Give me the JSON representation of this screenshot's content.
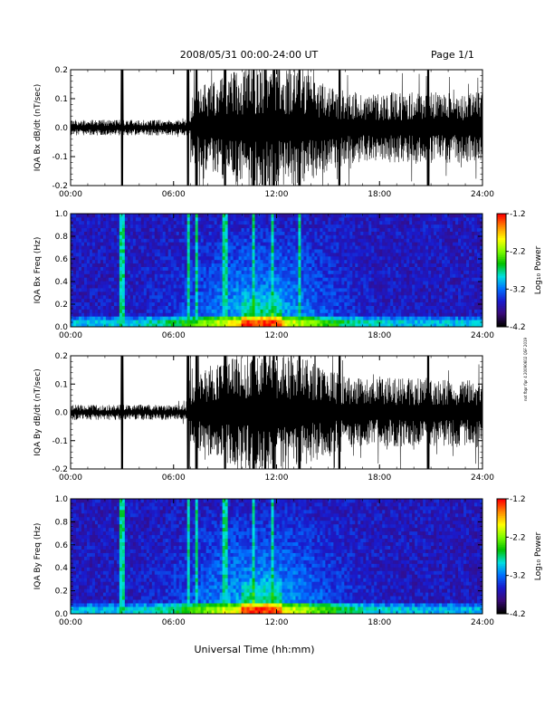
{
  "header": {
    "title": "2008/05/31  00:00-24:00 UT",
    "page": "Page 1/1"
  },
  "side_text": "not fbpr fipr 4 20090602 QSF 2019",
  "xlabel": "Universal Time (hh:mm)",
  "time_ticks": [
    "00:00",
    "06:00",
    "12:00",
    "18:00",
    "24:00"
  ],
  "colors": {
    "wave": "#000000",
    "background": "#ffffff"
  },
  "colorbar": {
    "label": "Log₁₀ Power",
    "ticks": [
      "-1.2",
      "-2.2",
      "-3.2",
      "-4.2"
    ],
    "stops": [
      "#ff0000",
      "#ff8c00",
      "#ffff00",
      "#7cfc00",
      "#00c000",
      "#00e0e0",
      "#0070ff",
      "#1a1acc",
      "#3a0a7a",
      "#000000"
    ]
  },
  "chart_data": [
    {
      "type": "line",
      "ylabel": "IQA Bx dB/dt (nT/sec)",
      "x": [
        "00:00",
        "24:00"
      ],
      "ylim": [
        -0.2,
        0.2
      ],
      "yticks": [
        "0.2",
        "0.1",
        "0.0",
        "-0.1",
        "-0.2"
      ],
      "grid": false,
      "spikes": [
        "03:00",
        "06:50",
        "07:20",
        "09:00",
        "10:40",
        "11:20",
        "11:50",
        "13:20",
        "15:40",
        "20:50"
      ],
      "activity_start": "07:00",
      "activity_peak": "11:30"
    },
    {
      "type": "heatmap",
      "ylabel": "IQA Bx Freq (Hz)",
      "x": [
        "00:00",
        "24:00"
      ],
      "ylim": [
        0.0,
        1.0
      ],
      "yticks": [
        "1.0",
        "0.8",
        "0.6",
        "0.4",
        "0.2",
        "0.0"
      ],
      "zlim": [
        -4.2,
        -1.2
      ],
      "vertical_lines": [
        "03:00",
        "06:50",
        "07:20",
        "09:00",
        "10:40",
        "11:50",
        "13:20"
      ]
    },
    {
      "type": "line",
      "ylabel": "IQA By dB/dt (nT/sec)",
      "x": [
        "00:00",
        "24:00"
      ],
      "ylim": [
        -0.2,
        0.2
      ],
      "yticks": [
        "0.2",
        "0.1",
        "0.0",
        "-0.1",
        "-0.2"
      ],
      "grid": false,
      "spikes": [
        "03:00",
        "06:50",
        "07:20",
        "09:00",
        "10:40",
        "11:20",
        "11:50",
        "13:20",
        "15:40",
        "20:50"
      ],
      "activity_start": "06:50",
      "activity_peak": "11:30"
    },
    {
      "type": "heatmap",
      "ylabel": "IQA By Freq (Hz)",
      "x": [
        "00:00",
        "24:00"
      ],
      "ylim": [
        0.0,
        1.0
      ],
      "yticks": [
        "1.0",
        "0.8",
        "0.6",
        "0.4",
        "0.2",
        "0.0"
      ],
      "zlim": [
        -4.2,
        -1.2
      ],
      "vertical_lines": [
        "03:00",
        "06:50",
        "07:20",
        "09:00",
        "10:40",
        "11:50"
      ]
    }
  ]
}
